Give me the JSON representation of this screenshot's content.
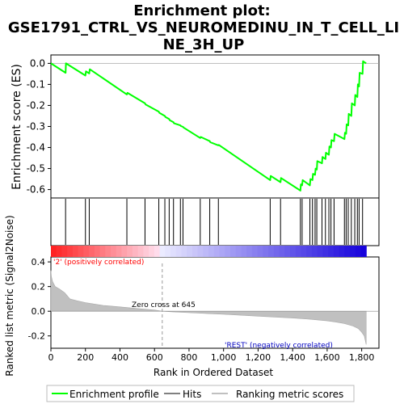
{
  "chart_data": [
    {
      "type": "line",
      "title": "Enrichment plot: GSE1791_CTRL_VS_NEUROMEDINU_IN_T_CELL_LINE_3H_UP",
      "title_lines": [
        "Enrichment plot:",
        "GSE1791_CTRL_VS_NEUROMEDINU_IN_T_CELL_LI",
        "NE_3H_UP"
      ],
      "ylabel": "Enrichment score (ES)",
      "ylim": [
        -0.64,
        0.04
      ],
      "yticks": [
        0.0,
        -0.1,
        -0.2,
        -0.3,
        -0.4,
        -0.5,
        -0.6
      ],
      "ytick_labels": [
        "0.0",
        "-0.1",
        "-0.2",
        "-0.3",
        "-0.4",
        "-0.5",
        "-0.6"
      ],
      "xlim": [
        0,
        1900
      ],
      "grid": false,
      "series": [
        {
          "name": "Enrichment profile",
          "color": "#00ff00",
          "x": [
            0,
            85,
            87,
            200,
            203,
            222,
            225,
            440,
            443,
            545,
            548,
            625,
            628,
            660,
            663,
            685,
            688,
            710,
            713,
            750,
            753,
            765,
            768,
            865,
            868,
            920,
            923,
            970,
            973,
            1270,
            1273,
            1330,
            1333,
            1445,
            1448,
            1455,
            1458,
            1500,
            1503,
            1515,
            1518,
            1530,
            1533,
            1540,
            1543,
            1570,
            1573,
            1590,
            1593,
            1610,
            1613,
            1622,
            1625,
            1640,
            1643,
            1700,
            1703,
            1710,
            1713,
            1722,
            1725,
            1740,
            1743,
            1760,
            1763,
            1775,
            1778,
            1785,
            1788,
            1805,
            1808,
            1826
          ],
          "y": [
            0.0,
            -0.045,
            0.0,
            -0.058,
            -0.038,
            -0.048,
            -0.028,
            -0.148,
            -0.14,
            -0.19,
            -0.195,
            -0.23,
            -0.235,
            -0.25,
            -0.255,
            -0.265,
            -0.27,
            -0.28,
            -0.285,
            -0.295,
            -0.298,
            -0.302,
            -0.305,
            -0.355,
            -0.35,
            -0.37,
            -0.375,
            -0.39,
            -0.388,
            -0.555,
            -0.535,
            -0.565,
            -0.545,
            -0.605,
            -0.575,
            -0.58,
            -0.555,
            -0.58,
            -0.55,
            -0.555,
            -0.525,
            -0.53,
            -0.5,
            -0.505,
            -0.465,
            -0.475,
            -0.445,
            -0.455,
            -0.425,
            -0.435,
            -0.395,
            -0.4,
            -0.365,
            -0.37,
            -0.335,
            -0.36,
            -0.33,
            -0.335,
            -0.29,
            -0.295,
            -0.24,
            -0.25,
            -0.19,
            -0.2,
            -0.15,
            -0.16,
            -0.1,
            -0.11,
            -0.045,
            -0.05,
            0.01,
            0.0
          ]
        }
      ],
      "hits": [
        85,
        200,
        222,
        440,
        545,
        625,
        660,
        685,
        710,
        750,
        765,
        865,
        920,
        970,
        1270,
        1330,
        1445,
        1455,
        1500,
        1515,
        1530,
        1540,
        1570,
        1590,
        1610,
        1622,
        1640,
        1700,
        1710,
        1722,
        1740,
        1760,
        1775,
        1785,
        1805
      ]
    },
    {
      "type": "area",
      "ylabel": "Ranked list metric (Signal2Noise)",
      "xlabel": "Rank in Ordered Dataset",
      "xlim": [
        0,
        1900
      ],
      "ylim": [
        -0.3,
        0.44
      ],
      "xticks": [
        0,
        200,
        400,
        600,
        800,
        1000,
        1200,
        1400,
        1600,
        1800
      ],
      "xtick_labels": [
        "0",
        "200",
        "400",
        "600",
        "800",
        "1,000",
        "1,200",
        "1,400",
        "1,600",
        "1,800"
      ],
      "yticks": [
        0.4,
        0.2,
        0.0,
        -0.2
      ],
      "ytick_labels": [
        "0.4",
        "0.2",
        "0.0",
        "-0.2"
      ],
      "zero_cross_rank": 645,
      "series": [
        {
          "name": "Ranking metric scores",
          "color": "#c0c0c0",
          "x": [
            0,
            3,
            10,
            25,
            50,
            80,
            110,
            150,
            200,
            300,
            400,
            500,
            600,
            645,
            700,
            800,
            1000,
            1200,
            1400,
            1500,
            1600,
            1650,
            1700,
            1750,
            1780,
            1800,
            1815,
            1826
          ],
          "y": [
            0.33,
            0.28,
            0.24,
            0.2,
            0.18,
            0.15,
            0.1,
            0.085,
            0.07,
            0.048,
            0.035,
            0.022,
            0.01,
            0.0,
            -0.005,
            -0.012,
            -0.025,
            -0.04,
            -0.055,
            -0.065,
            -0.078,
            -0.088,
            -0.1,
            -0.12,
            -0.14,
            -0.17,
            -0.2,
            -0.27
          ]
        }
      ]
    }
  ],
  "labels": {
    "zero_cross": "Zero cross at 645",
    "positive": "'2' (positively correlated)",
    "negative": "'REST' (negatively correlated)"
  },
  "legend": {
    "position": "bottom",
    "items": [
      {
        "label": "Enrichment profile",
        "color": "#00ff00"
      },
      {
        "label": "Hits",
        "color": "#000000"
      },
      {
        "label": "Ranking metric scores",
        "color": "#c0c0c0"
      }
    ]
  },
  "colors": {
    "positive_label": "#ff0000",
    "negative_label": "#0000c0",
    "bar_positive": "#ff0000",
    "bar_negative": "#0000ff"
  }
}
